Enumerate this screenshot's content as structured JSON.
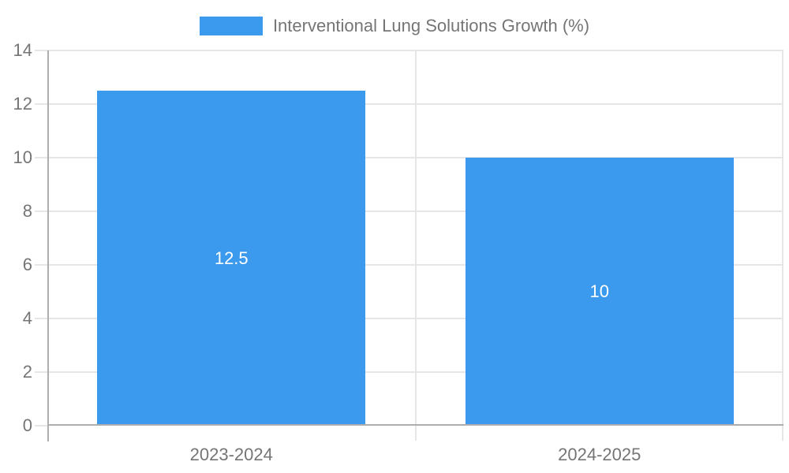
{
  "chart_data": {
    "type": "bar",
    "title": "",
    "legend": "Interventional Lung Solutions Growth (%)",
    "legend_position": "top",
    "categories": [
      "2023-2024",
      "2024-2025"
    ],
    "values": [
      12.5,
      10
    ],
    "value_labels": [
      "12.5",
      "10"
    ],
    "xlabel": "",
    "ylabel": "",
    "ylim": [
      0,
      14
    ],
    "yticks": [
      0,
      2,
      4,
      6,
      8,
      10,
      12,
      14
    ],
    "grid": true,
    "colors": {
      "bar": "#3b99ee",
      "grid": "#e6e6e6",
      "axis": "#aeaeae",
      "text": "#757575",
      "bar_label": "#ffffff",
      "background": "#ffffff"
    }
  }
}
